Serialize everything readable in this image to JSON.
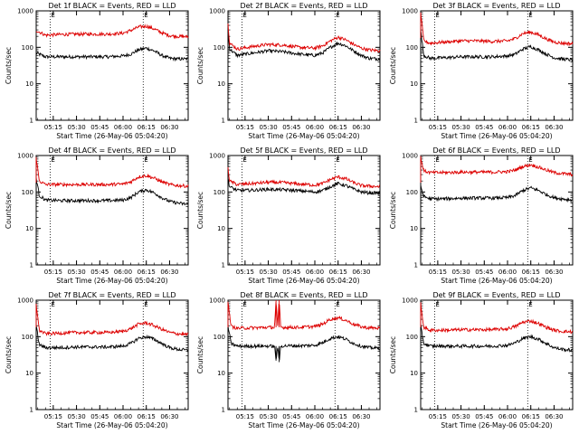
{
  "figure": {
    "title_template": "Det {n}f BLACK = Events, RED = LLD",
    "xlabel": "Start Time (26-May-06 05:04:20)",
    "ylabel": "Counts/sec",
    "colors": {
      "events": "#000000",
      "lld": "#dd0000",
      "frame": "#000000"
    }
  },
  "chart_data": [
    {
      "type": "line",
      "title": "Det 1f BLACK = Events, RED = LLD",
      "xlabel": "Start Time (26-May-06 05:04:20)",
      "ylabel": "Counts/sec",
      "xlim": [
        "05:04",
        "06:42"
      ],
      "ylim": [
        1,
        1000
      ],
      "yscale": "log",
      "x_ticks": [
        "05:15",
        "05:30",
        "05:45",
        "06:00",
        "06:15",
        "06:30"
      ],
      "y_ticks": [
        "1",
        "10",
        "100",
        "1000"
      ],
      "markers": [
        {
          "time": "05:13",
          "label": "E"
        },
        {
          "time": "06:13",
          "label": "E"
        }
      ],
      "x": [
        "05:04",
        "05:10",
        "05:20",
        "05:30",
        "05:40",
        "05:50",
        "06:00",
        "06:05",
        "06:10",
        "06:15",
        "06:20",
        "06:25",
        "06:30",
        "06:35",
        "06:42"
      ],
      "series": [
        {
          "name": "Events",
          "values": [
            70,
            55,
            55,
            55,
            55,
            55,
            58,
            65,
            85,
            95,
            80,
            60,
            50,
            48,
            48
          ]
        },
        {
          "name": "LLD",
          "values": [
            290,
            215,
            225,
            230,
            230,
            230,
            245,
            290,
            360,
            380,
            320,
            250,
            210,
            200,
            195
          ]
        }
      ]
    },
    {
      "type": "line",
      "title": "Det 2f BLACK = Events, RED = LLD",
      "xlabel": "Start Time (26-May-06 05:04:20)",
      "ylabel": "Counts/sec",
      "xlim": [
        "05:04",
        "06:42"
      ],
      "ylim": [
        1,
        1000
      ],
      "yscale": "log",
      "x_ticks": [
        "05:15",
        "05:30",
        "05:45",
        "06:00",
        "06:15",
        "06:30"
      ],
      "y_ticks": [
        "1",
        "10",
        "100",
        "1000"
      ],
      "markers": [
        {
          "time": "05:13",
          "label": "E"
        },
        {
          "time": "06:13",
          "label": "E"
        }
      ],
      "x": [
        "05:04",
        "05:05",
        "05:10",
        "05:20",
        "05:30",
        "05:40",
        "05:50",
        "06:00",
        "06:05",
        "06:10",
        "06:15",
        "06:20",
        "06:25",
        "06:30",
        "06:35",
        "06:42"
      ],
      "series": [
        {
          "name": "Events",
          "values": [
            300,
            90,
            60,
            70,
            80,
            75,
            65,
            60,
            70,
            100,
            130,
            110,
            80,
            60,
            50,
            48
          ]
        },
        {
          "name": "LLD",
          "values": [
            500,
            130,
            90,
            105,
            120,
            115,
            100,
            95,
            110,
            150,
            190,
            160,
            120,
            95,
            85,
            80
          ]
        }
      ]
    },
    {
      "type": "line",
      "title": "Det 3f BLACK = Events, RED = LLD",
      "xlabel": "Start Time (26-May-06 05:04:20)",
      "ylabel": "Counts/sec",
      "xlim": [
        "05:04",
        "06:42"
      ],
      "ylim": [
        1,
        1000
      ],
      "yscale": "log",
      "x_ticks": [
        "05:15",
        "05:30",
        "05:45",
        "06:00",
        "06:15",
        "06:30"
      ],
      "y_ticks": [
        "1",
        "10",
        "100",
        "1000"
      ],
      "markers": [
        {
          "time": "05:13",
          "label": "E"
        },
        {
          "time": "06:13",
          "label": "E"
        }
      ],
      "x": [
        "05:04",
        "05:06",
        "05:10",
        "05:20",
        "05:30",
        "05:40",
        "05:50",
        "06:00",
        "06:05",
        "06:10",
        "06:15",
        "06:20",
        "06:25",
        "06:30",
        "06:35",
        "06:42"
      ],
      "series": [
        {
          "name": "Events",
          "values": [
            300,
            60,
            50,
            52,
            55,
            55,
            55,
            58,
            65,
            90,
            105,
            85,
            65,
            52,
            48,
            45
          ]
        },
        {
          "name": "LLD",
          "values": [
            900,
            150,
            130,
            140,
            150,
            150,
            145,
            150,
            175,
            240,
            260,
            220,
            170,
            140,
            130,
            125
          ]
        }
      ]
    },
    {
      "type": "line",
      "title": "Det 4f BLACK = Events, RED = LLD",
      "xlabel": "Start Time (26-May-06 05:04:20)",
      "ylabel": "Counts/sec",
      "xlim": [
        "05:04",
        "06:42"
      ],
      "ylim": [
        1,
        1000
      ],
      "yscale": "log",
      "x_ticks": [
        "05:15",
        "05:30",
        "05:45",
        "06:00",
        "06:15",
        "06:30"
      ],
      "y_ticks": [
        "1",
        "10",
        "100",
        "1000"
      ],
      "markers": [
        {
          "time": "05:13",
          "label": "E"
        },
        {
          "time": "06:13",
          "label": "E"
        }
      ],
      "x": [
        "05:04",
        "05:06",
        "05:10",
        "05:20",
        "05:30",
        "05:40",
        "05:50",
        "06:00",
        "06:05",
        "06:10",
        "06:15",
        "06:20",
        "06:25",
        "06:30",
        "06:35",
        "06:42"
      ],
      "series": [
        {
          "name": "Events",
          "values": [
            250,
            80,
            60,
            58,
            58,
            58,
            58,
            60,
            70,
            100,
            115,
            95,
            70,
            55,
            50,
            45
          ]
        },
        {
          "name": "LLD",
          "values": [
            900,
            200,
            160,
            160,
            160,
            160,
            160,
            165,
            190,
            260,
            280,
            240,
            190,
            160,
            150,
            145
          ]
        }
      ]
    },
    {
      "type": "line",
      "title": "Det 5f BLACK = Events, RED = LLD",
      "xlabel": "Start Time (26-May-06 05:04:20)",
      "ylabel": "Counts/sec",
      "xlim": [
        "05:04",
        "06:42"
      ],
      "ylim": [
        1,
        1000
      ],
      "yscale": "log",
      "x_ticks": [
        "05:15",
        "05:30",
        "05:45",
        "06:00",
        "06:15",
        "06:30"
      ],
      "y_ticks": [
        "1",
        "10",
        "100",
        "1000"
      ],
      "markers": [
        {
          "time": "05:13",
          "label": "E"
        },
        {
          "time": "06:13",
          "label": "E"
        }
      ],
      "x": [
        "05:04",
        "05:05",
        "05:10",
        "05:20",
        "05:30",
        "05:40",
        "05:50",
        "06:00",
        "06:05",
        "06:10",
        "06:15",
        "06:20",
        "06:25",
        "06:30",
        "06:35",
        "06:42"
      ],
      "series": [
        {
          "name": "Events",
          "values": [
            250,
            140,
            110,
            112,
            118,
            115,
            108,
            100,
            110,
            140,
            170,
            150,
            120,
            100,
            95,
            92
          ]
        },
        {
          "name": "LLD",
          "values": [
            500,
            200,
            160,
            170,
            185,
            180,
            165,
            155,
            170,
            220,
            260,
            230,
            180,
            150,
            145,
            140
          ]
        }
      ]
    },
    {
      "type": "line",
      "title": "Det 6f BLACK = Events, RED = LLD",
      "xlabel": "Start Time (26-May-06 05:04:20)",
      "ylabel": "Counts/sec",
      "xlim": [
        "05:04",
        "06:42"
      ],
      "ylim": [
        1,
        1000
      ],
      "yscale": "log",
      "x_ticks": [
        "05:15",
        "05:30",
        "05:45",
        "06:00",
        "06:15",
        "06:30"
      ],
      "y_ticks": [
        "1",
        "10",
        "100",
        "1000"
      ],
      "markers": [
        {
          "time": "05:13",
          "label": "E"
        },
        {
          "time": "06:13",
          "label": "E"
        }
      ],
      "x": [
        "05:04",
        "05:06",
        "05:10",
        "05:20",
        "05:30",
        "05:40",
        "05:50",
        "06:00",
        "06:05",
        "06:10",
        "06:15",
        "06:20",
        "06:25",
        "06:30",
        "06:35",
        "06:42"
      ],
      "series": [
        {
          "name": "Events",
          "values": [
            150,
            75,
            65,
            65,
            68,
            68,
            68,
            70,
            80,
            110,
            130,
            110,
            85,
            70,
            65,
            60
          ]
        },
        {
          "name": "LLD",
          "values": [
            900,
            380,
            340,
            340,
            350,
            350,
            350,
            360,
            400,
            500,
            560,
            480,
            400,
            340,
            320,
            300
          ]
        }
      ]
    },
    {
      "type": "line",
      "title": "Det 7f BLACK = Events, RED = LLD",
      "xlabel": "Start Time (26-May-06 05:04:20)",
      "ylabel": "Counts/sec",
      "xlim": [
        "05:04",
        "06:42"
      ],
      "ylim": [
        1,
        1000
      ],
      "yscale": "log",
      "x_ticks": [
        "05:15",
        "05:30",
        "05:45",
        "06:00",
        "06:15",
        "06:30"
      ],
      "y_ticks": [
        "1",
        "10",
        "100",
        "1000"
      ],
      "markers": [
        {
          "time": "05:13",
          "label": "E"
        },
        {
          "time": "06:13",
          "label": "E"
        }
      ],
      "x": [
        "05:04",
        "05:06",
        "05:10",
        "05:20",
        "05:30",
        "05:40",
        "05:50",
        "06:00",
        "06:05",
        "06:10",
        "06:15",
        "06:20",
        "06:25",
        "06:30",
        "06:35",
        "06:42"
      ],
      "series": [
        {
          "name": "Events",
          "values": [
            200,
            60,
            50,
            50,
            52,
            52,
            52,
            55,
            65,
            90,
            100,
            85,
            65,
            50,
            45,
            42
          ]
        },
        {
          "name": "LLD",
          "values": [
            800,
            150,
            120,
            125,
            130,
            130,
            130,
            140,
            165,
            220,
            240,
            200,
            160,
            130,
            120,
            115
          ]
        }
      ]
    },
    {
      "type": "line",
      "title": "Det 8f BLACK = Events, RED = LLD",
      "xlabel": "Start Time (26-May-06 05:04:20)",
      "ylabel": "Counts/sec",
      "xlim": [
        "05:04",
        "06:42"
      ],
      "ylim": [
        1,
        1000
      ],
      "yscale": "log",
      "x_ticks": [
        "05:15",
        "05:30",
        "05:45",
        "06:00",
        "06:15",
        "06:30"
      ],
      "y_ticks": [
        "1",
        "10",
        "100",
        "1000"
      ],
      "markers": [
        {
          "time": "05:13",
          "label": "E"
        },
        {
          "time": "06:13",
          "label": "E"
        }
      ],
      "x": [
        "05:04",
        "05:06",
        "05:10",
        "05:20",
        "05:30",
        "05:34",
        "05:35",
        "05:36",
        "05:37",
        "05:38",
        "05:40",
        "05:50",
        "06:00",
        "06:05",
        "06:10",
        "06:15",
        "06:20",
        "06:25",
        "06:30",
        "06:35",
        "06:42"
      ],
      "series": [
        {
          "name": "Events",
          "values": [
            200,
            65,
            55,
            55,
            55,
            55,
            22,
            55,
            20,
            55,
            56,
            56,
            58,
            68,
            90,
            100,
            85,
            65,
            55,
            50,
            48
          ]
        },
        {
          "name": "LLD",
          "values": [
            900,
            190,
            170,
            175,
            180,
            180,
            1000,
            180,
            1000,
            180,
            180,
            180,
            190,
            220,
            300,
            330,
            280,
            220,
            185,
            175,
            170
          ]
        }
      ]
    },
    {
      "type": "line",
      "title": "Det 9f BLACK = Events, RED = LLD",
      "xlabel": "Start Time (26-May-06 05:04:20)",
      "ylabel": "Counts/sec",
      "xlim": [
        "05:04",
        "06:42"
      ],
      "ylim": [
        1,
        1000
      ],
      "yscale": "log",
      "x_ticks": [
        "05:15",
        "05:30",
        "05:45",
        "06:00",
        "06:15",
        "06:30"
      ],
      "y_ticks": [
        "1",
        "10",
        "100",
        "1000"
      ],
      "markers": [
        {
          "time": "05:13",
          "label": "E"
        },
        {
          "time": "06:13",
          "label": "E"
        }
      ],
      "x": [
        "05:04",
        "05:06",
        "05:10",
        "05:20",
        "05:30",
        "05:40",
        "05:50",
        "06:00",
        "06:05",
        "06:10",
        "06:15",
        "06:20",
        "06:25",
        "06:30",
        "06:35",
        "06:42"
      ],
      "series": [
        {
          "name": "Events",
          "values": [
            200,
            65,
            55,
            55,
            55,
            55,
            55,
            58,
            68,
            90,
            100,
            85,
            65,
            50,
            45,
            42
          ]
        },
        {
          "name": "LLD",
          "values": [
            800,
            180,
            150,
            150,
            155,
            155,
            155,
            165,
            190,
            250,
            270,
            230,
            180,
            150,
            140,
            135
          ]
        }
      ]
    }
  ]
}
